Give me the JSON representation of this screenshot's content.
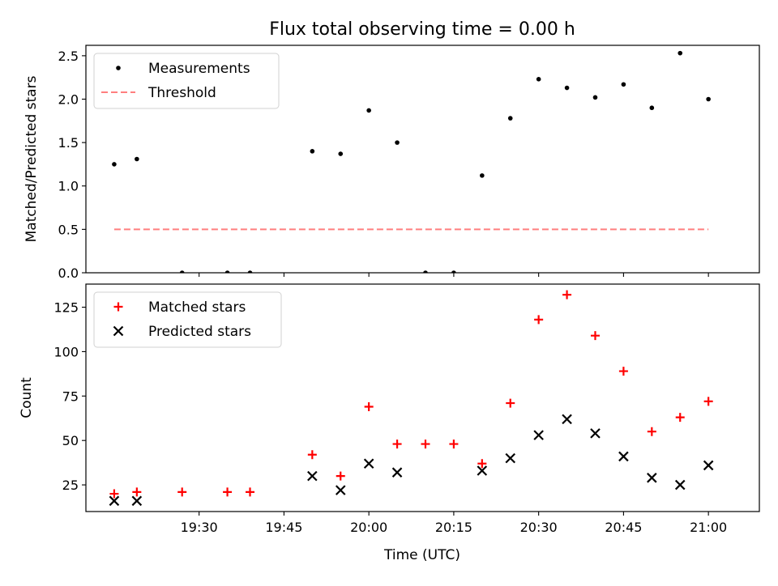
{
  "figure": {
    "title": "Flux total observing time = 0.00 h",
    "xlabel": "Time (UTC)"
  },
  "chart_data": [
    {
      "type": "scatter",
      "ylabel": "Matched/Predicted stars",
      "ylim": [
        0,
        2.62
      ],
      "yticks": [
        "0.0",
        "0.5",
        "1.0",
        "1.5",
        "2.0",
        "2.5"
      ],
      "xlim": [
        "19:10",
        "21:09"
      ],
      "xticks": [
        "19:30",
        "19:45",
        "20:00",
        "20:15",
        "20:30",
        "20:45",
        "21:00"
      ],
      "legend_position": "upper-left",
      "series": [
        {
          "name": "Measurements",
          "marker": "dot",
          "color": "#000000",
          "points": [
            [
              "19:15",
              1.25
            ],
            [
              "19:19",
              1.31
            ],
            [
              "19:27",
              0.0
            ],
            [
              "19:35",
              0.0
            ],
            [
              "19:39",
              0.0
            ],
            [
              "19:50",
              1.4
            ],
            [
              "19:55",
              1.37
            ],
            [
              "20:00",
              1.87
            ],
            [
              "20:05",
              1.5
            ],
            [
              "20:10",
              0.0
            ],
            [
              "20:15",
              0.0
            ],
            [
              "20:20",
              1.12
            ],
            [
              "20:25",
              1.78
            ],
            [
              "20:30",
              2.23
            ],
            [
              "20:35",
              2.13
            ],
            [
              "20:40",
              2.02
            ],
            [
              "20:45",
              2.17
            ],
            [
              "20:50",
              1.9
            ],
            [
              "20:55",
              2.53
            ],
            [
              "21:00",
              2.0
            ]
          ]
        },
        {
          "name": "Threshold",
          "marker": "dashed-line",
          "color": "#ff7f7f",
          "points": [
            [
              "19:15",
              0.5
            ],
            [
              "21:00",
              0.5
            ]
          ]
        }
      ]
    },
    {
      "type": "scatter",
      "ylabel": "Count",
      "ylim": [
        10,
        138
      ],
      "yticks": [
        "25",
        "50",
        "75",
        "100",
        "125"
      ],
      "xlim": [
        "19:10",
        "21:09"
      ],
      "xticks": [
        "19:30",
        "19:45",
        "20:00",
        "20:15",
        "20:30",
        "20:45",
        "21:00"
      ],
      "legend_position": "upper-left",
      "series": [
        {
          "name": "Matched stars",
          "marker": "plus",
          "color": "#ff0000",
          "points": [
            [
              "19:15",
              20
            ],
            [
              "19:19",
              21
            ],
            [
              "19:27",
              21
            ],
            [
              "19:35",
              21
            ],
            [
              "19:39",
              21
            ],
            [
              "19:50",
              42
            ],
            [
              "19:55",
              30
            ],
            [
              "20:00",
              69
            ],
            [
              "20:05",
              48
            ],
            [
              "20:10",
              48
            ],
            [
              "20:15",
              48
            ],
            [
              "20:20",
              37
            ],
            [
              "20:25",
              71
            ],
            [
              "20:30",
              118
            ],
            [
              "20:35",
              132
            ],
            [
              "20:40",
              109
            ],
            [
              "20:45",
              89
            ],
            [
              "20:50",
              55
            ],
            [
              "20:55",
              63
            ],
            [
              "21:00",
              72
            ]
          ]
        },
        {
          "name": "Predicted stars",
          "marker": "x",
          "color": "#000000",
          "points": [
            [
              "19:15",
              16
            ],
            [
              "19:19",
              16
            ],
            [
              "19:50",
              30
            ],
            [
              "19:55",
              22
            ],
            [
              "20:00",
              37
            ],
            [
              "20:05",
              32
            ],
            [
              "20:20",
              33
            ],
            [
              "20:25",
              40
            ],
            [
              "20:30",
              53
            ],
            [
              "20:35",
              62
            ],
            [
              "20:40",
              54
            ],
            [
              "20:45",
              41
            ],
            [
              "20:50",
              29
            ],
            [
              "20:55",
              25
            ],
            [
              "21:00",
              36
            ]
          ]
        }
      ]
    }
  ]
}
